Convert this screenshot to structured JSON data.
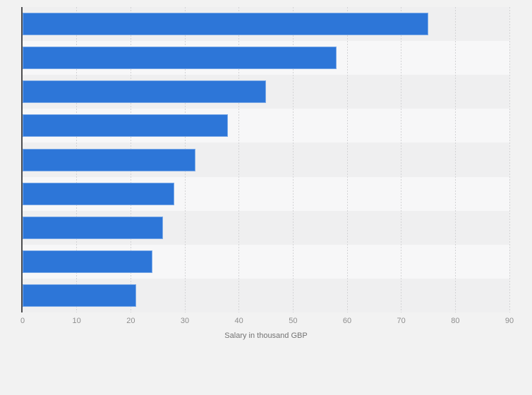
{
  "chart_data": {
    "type": "bar",
    "orientation": "horizontal",
    "title": "",
    "xlabel": "Salary in thousand GBP",
    "ylabel": "",
    "values": [
      75,
      58,
      45,
      38,
      32,
      28,
      26,
      24,
      21
    ],
    "categories": [
      "",
      "",
      "",
      "",
      "",
      "",
      "",
      "",
      ""
    ],
    "xlim": [
      0,
      90
    ],
    "x_ticks": [
      0,
      10,
      20,
      30,
      40,
      50,
      60,
      70,
      80,
      90
    ],
    "grid": "vertical-dotted",
    "legend": "none"
  },
  "colors": {
    "background": "#f2f2f2",
    "band_dark": "#efeff0",
    "band_light": "#f7f7f8",
    "bar": "#2d76d8",
    "axis_line": "#4d4d4f",
    "gridline": "#d3d3d5",
    "tick_label": "#8e8e8e",
    "axis_title": "#737373"
  }
}
